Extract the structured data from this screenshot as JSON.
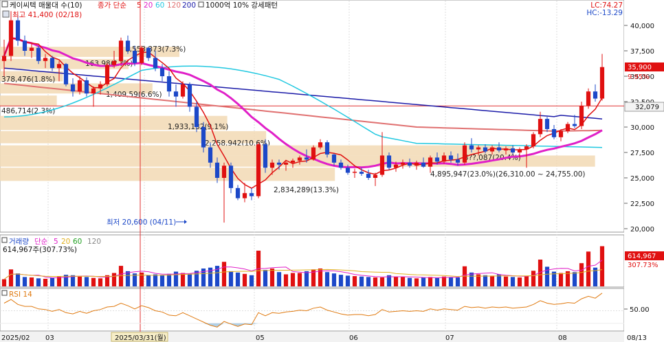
{
  "header": {
    "stock_label": "케이씨텍 매물대 수(10)",
    "ma_label": "종가 단순",
    "ma_periods": [
      "5",
      "20",
      "60",
      "120",
      "200"
    ],
    "ma_colors": [
      "#e01010",
      "#e020c8",
      "#20c8e0",
      "#e07070",
      "#1a1aa8"
    ],
    "pattern_label": "1000억 10% 강세패턴",
    "lc_label": "LC:74.27",
    "hc_label": "HC:-13.29",
    "high_label": "최고 41,400 (02/18)",
    "low_label": "최저 20,600 (04/11)"
  },
  "price_panel": {
    "y_ticks": [
      "40,000",
      "37,500",
      "35,000",
      "32,500",
      "30,000",
      "27,500",
      "25,000",
      "22,500",
      "20,000"
    ],
    "current_price_label": "35,900",
    "current_change_label": "9.95%",
    "ref_price_label": "32,079"
  },
  "volume_profile": [
    {
      "label": "1,553,373(7.3%)"
    },
    {
      "label": "163,98(?.?%)"
    },
    {
      "label": "378,476(1.8%)"
    },
    {
      "label": "1,409,59(6.6%)"
    },
    {
      "label": "486,714(2.3%)"
    },
    {
      "label": "1,933,132(9.1%)"
    },
    {
      "label": "2,258,942(10.6%)"
    },
    {
      "label": "2,834,289(13.3%)"
    },
    {
      "label": "4,895,947(23.0%)(26,310.00 ~ 24,755.00)"
    },
    {
      "label": "3??,087(20.4%)"
    }
  ],
  "volume_panel": {
    "label": "거래량",
    "ma_label": "단순",
    "ma_periods": [
      "5",
      "20",
      "60",
      "120"
    ],
    "value_label": "614,967주(307.73%)",
    "badge_value": "614,967",
    "badge_pct": "307.73%"
  },
  "rsi_panel": {
    "label": "RSI 14",
    "y_tick": "50.00"
  },
  "x_axis": {
    "labels": [
      "2025/02",
      "03",
      "2025/03/31(월)",
      "05",
      "06",
      "07",
      "08",
      "08/13"
    ]
  },
  "colors": {
    "up": "#e01010",
    "down": "#1c48c8",
    "crosshair": "#e03030",
    "profile": "#f2d9b4"
  },
  "chart_data": {
    "type": "candlestick",
    "ylim": [
      19500,
      41500
    ],
    "candles": [
      [
        36500,
        38600,
        35000,
        37000
      ],
      [
        37000,
        41400,
        36500,
        40500
      ],
      [
        40500,
        41000,
        38000,
        38500
      ],
      [
        38500,
        39000,
        37000,
        37500
      ],
      [
        37500,
        38200,
        36800,
        37800
      ],
      [
        37800,
        38000,
        36200,
        36500
      ],
      [
        36500,
        37200,
        35800,
        36800
      ],
      [
        36800,
        37000,
        35500,
        35800
      ],
      [
        35800,
        36500,
        34500,
        36200
      ],
      [
        36200,
        36300,
        34000,
        34200
      ],
      [
        34200,
        34800,
        33000,
        33500
      ],
      [
        33500,
        35000,
        33200,
        34600
      ],
      [
        34600,
        34900,
        33000,
        33300
      ],
      [
        33300,
        34000,
        32000,
        33800
      ],
      [
        33800,
        34500,
        33200,
        34200
      ],
      [
        34200,
        36300,
        34000,
        36100
      ],
      [
        36100,
        37500,
        35800,
        36500
      ],
      [
        36500,
        38800,
        36200,
        38500
      ],
      [
        38500,
        39000,
        37200,
        37500
      ],
      [
        37500,
        38000,
        36000,
        36300
      ],
      [
        36300,
        38000,
        36100,
        37800
      ],
      [
        37800,
        37900,
        36500,
        36800
      ],
      [
        36800,
        37500,
        35500,
        35800
      ],
      [
        35800,
        36200,
        34500,
        35000
      ],
      [
        35000,
        35500,
        33000,
        33500
      ],
      [
        33500,
        34200,
        32000,
        33000
      ],
      [
        33000,
        34500,
        32800,
        34200
      ],
      [
        34200,
        34400,
        31500,
        32000
      ],
      [
        32000,
        32500,
        29500,
        30000
      ],
      [
        30000,
        30500,
        27500,
        28000
      ],
      [
        28000,
        28500,
        26000,
        26500
      ],
      [
        26500,
        27000,
        24500,
        25000
      ],
      [
        25000,
        26500,
        20600,
        26200
      ],
      [
        26200,
        26500,
        23500,
        24000
      ],
      [
        24000,
        24300,
        22800,
        23000
      ],
      [
        23000,
        24500,
        22600,
        23500
      ],
      [
        23500,
        24000,
        22800,
        23200
      ],
      [
        23200,
        28500,
        23000,
        28300
      ],
      [
        28300,
        28800,
        25500,
        26000
      ],
      [
        26000,
        26800,
        25300,
        26500
      ],
      [
        26500,
        26800,
        25800,
        26300
      ],
      [
        26300,
        26700,
        25700,
        26500
      ],
      [
        26500,
        26900,
        26000,
        26700
      ],
      [
        26700,
        27200,
        26300,
        27000
      ],
      [
        27000,
        27800,
        26500,
        26800
      ],
      [
        26800,
        28200,
        26700,
        28000
      ],
      [
        28000,
        28800,
        27800,
        28500
      ],
      [
        28500,
        28700,
        27000,
        27300
      ],
      [
        27300,
        27400,
        26200,
        26500
      ],
      [
        26500,
        26800,
        25800,
        26000
      ],
      [
        26000,
        26300,
        25300,
        25500
      ],
      [
        25500,
        25900,
        25000,
        25600
      ],
      [
        25600,
        26000,
        25200,
        25400
      ],
      [
        25400,
        25800,
        24800,
        25000
      ],
      [
        25000,
        25500,
        24200,
        25300
      ],
      [
        25300,
        29500,
        25100,
        27200
      ],
      [
        27200,
        27500,
        25800,
        26000
      ],
      [
        26000,
        26600,
        25600,
        26300
      ],
      [
        26300,
        26800,
        25900,
        26500
      ],
      [
        26500,
        26900,
        26000,
        26200
      ],
      [
        26200,
        26700,
        25800,
        26500
      ],
      [
        26500,
        27000,
        26000,
        26100
      ],
      [
        26100,
        27200,
        25500,
        27000
      ],
      [
        27000,
        27500,
        26300,
        26600
      ],
      [
        26600,
        27500,
        26400,
        27200
      ],
      [
        27200,
        27600,
        26500,
        26800
      ],
      [
        26800,
        27400,
        26200,
        26500
      ],
      [
        26500,
        28500,
        26300,
        28200
      ],
      [
        28200,
        28900,
        27500,
        27800
      ],
      [
        27800,
        28200,
        27200,
        28000
      ],
      [
        28000,
        28300,
        27400,
        27600
      ],
      [
        27600,
        28200,
        27300,
        28000
      ],
      [
        28000,
        28500,
        27500,
        27700
      ],
      [
        27700,
        28100,
        27300,
        27900
      ],
      [
        27900,
        28200,
        27300,
        27500
      ],
      [
        27500,
        28000,
        27000,
        27800
      ],
      [
        27800,
        28300,
        26000,
        28100
      ],
      [
        28100,
        29500,
        27900,
        29300
      ],
      [
        29300,
        31500,
        29000,
        30800
      ],
      [
        30800,
        31000,
        29500,
        29800
      ],
      [
        29800,
        30200,
        28800,
        29000
      ],
      [
        29000,
        29800,
        28600,
        29600
      ],
      [
        29600,
        30500,
        29400,
        30300
      ],
      [
        30300,
        31200,
        29900,
        30100
      ],
      [
        30100,
        32500,
        29800,
        32100
      ],
      [
        32100,
        33800,
        31800,
        33500
      ],
      [
        33500,
        34200,
        32500,
        32800
      ],
      [
        32800,
        37200,
        32600,
        35900
      ]
    ],
    "volume": [
      0.16,
      0.38,
      0.29,
      0.21,
      0.2,
      0.18,
      0.17,
      0.2,
      0.22,
      0.26,
      0.25,
      0.22,
      0.21,
      0.19,
      0.18,
      0.25,
      0.3,
      0.46,
      0.34,
      0.29,
      0.31,
      0.25,
      0.27,
      0.25,
      0.28,
      0.33,
      0.3,
      0.28,
      0.35,
      0.4,
      0.42,
      0.46,
      0.55,
      0.34,
      0.31,
      0.28,
      0.25,
      0.8,
      0.37,
      0.4,
      0.32,
      0.27,
      0.3,
      0.3,
      0.34,
      0.38,
      0.4,
      0.32,
      0.29,
      0.26,
      0.24,
      0.23,
      0.22,
      0.21,
      0.2,
      0.2,
      0.25,
      0.22,
      0.21,
      0.19,
      0.18,
      0.2,
      0.21,
      0.19,
      0.22,
      0.2,
      0.2,
      0.45,
      0.31,
      0.27,
      0.25,
      0.24,
      0.27,
      0.22,
      0.21,
      0.2,
      0.23,
      0.35,
      0.6,
      0.44,
      0.33,
      0.3,
      0.34,
      0.32,
      0.52,
      0.78,
      0.42,
      0.9
    ],
    "rsi": [
      62,
      68,
      60,
      57,
      57,
      53,
      52,
      49,
      52,
      47,
      45,
      49,
      46,
      50,
      52,
      56,
      57,
      62,
      58,
      53,
      58,
      55,
      50,
      48,
      43,
      42,
      47,
      42,
      37,
      32,
      27,
      24,
      33,
      29,
      25,
      29,
      28,
      47,
      42,
      47,
      46,
      48,
      49,
      51,
      50,
      54,
      56,
      51,
      48,
      45,
      43,
      44,
      44,
      42,
      44,
      52,
      48,
      49,
      50,
      49,
      50,
      49,
      53,
      51,
      53,
      52,
      51,
      57,
      55,
      56,
      54,
      56,
      55,
      56,
      54,
      55,
      56,
      60,
      66,
      62,
      60,
      61,
      63,
      62,
      69,
      73,
      70,
      78
    ]
  }
}
